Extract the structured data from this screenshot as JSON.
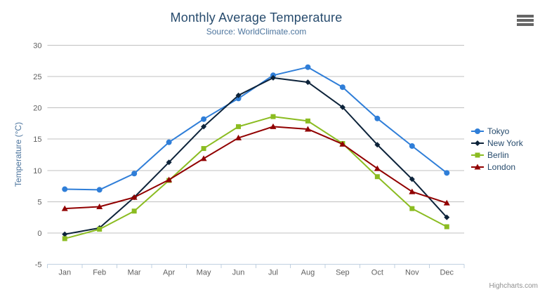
{
  "chart_data": {
    "type": "line",
    "title": "Monthly Average Temperature",
    "subtitle": "Source: WorldClimate.com",
    "xlabel": "",
    "ylabel": "Temperature (°C)",
    "ylim": [
      -5,
      30
    ],
    "y_ticks": [
      -5,
      0,
      5,
      10,
      15,
      20,
      25,
      30
    ],
    "grid": true,
    "legend_position": "right",
    "categories": [
      "Jan",
      "Feb",
      "Mar",
      "Apr",
      "May",
      "Jun",
      "Jul",
      "Aug",
      "Sep",
      "Oct",
      "Nov",
      "Dec"
    ],
    "series": [
      {
        "name": "Tokyo",
        "color": "#2f7ed8",
        "symbol": "circle",
        "values": [
          7.0,
          6.9,
          9.5,
          14.5,
          18.2,
          21.5,
          25.2,
          26.5,
          23.3,
          18.3,
          13.9,
          9.6
        ]
      },
      {
        "name": "New York",
        "color": "#0d233a",
        "symbol": "diamond",
        "values": [
          -0.2,
          0.8,
          5.7,
          11.3,
          17.0,
          22.0,
          24.8,
          24.1,
          20.1,
          14.1,
          8.6,
          2.5
        ]
      },
      {
        "name": "Berlin",
        "color": "#8bbc21",
        "symbol": "square",
        "values": [
          -0.9,
          0.6,
          3.5,
          8.4,
          13.5,
          17.0,
          18.6,
          17.9,
          14.3,
          9.0,
          3.9,
          1.0
        ]
      },
      {
        "name": "London",
        "color": "#910000",
        "symbol": "triangle",
        "values": [
          3.9,
          4.2,
          5.7,
          8.5,
          11.9,
          15.2,
          17.0,
          16.6,
          14.2,
          10.3,
          6.6,
          4.8
        ]
      }
    ]
  },
  "footer": {
    "credits": "Highcharts.com"
  },
  "icons": {
    "menu": "hamburger-icon"
  },
  "colors": {
    "title": "#274b6d",
    "subtitle": "#4d759e",
    "axis_title": "#4d759e",
    "axis_label": "#606060",
    "grid_line": "#C0C0C0",
    "axis_line": "#C0D0E0",
    "tick": "#C0D0E0",
    "legend_text": "#274b6d",
    "credits": "#909090",
    "menu_icon": "#666666"
  }
}
